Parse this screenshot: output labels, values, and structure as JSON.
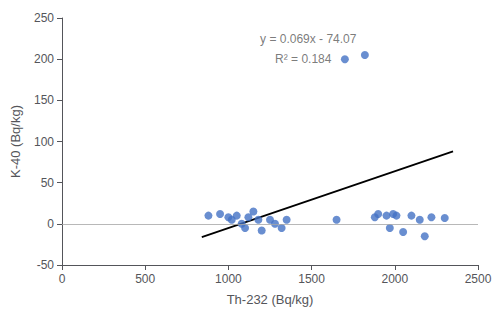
{
  "chart_data": {
    "type": "scatter",
    "xlabel": "Th-232 (Bq/kg)",
    "ylabel": "K-40 (Bq/kg)",
    "series": [
      {
        "type": "scatter",
        "color": "#4472c4",
        "x": [
          880,
          950,
          1000,
          1020,
          1050,
          1080,
          1100,
          1120,
          1150,
          1180,
          1200,
          1250,
          1280,
          1320,
          1350,
          1650,
          1700,
          1820,
          1880,
          1900,
          1950,
          1970,
          1990,
          2010,
          2050,
          2100,
          2150,
          2180,
          2220,
          2300
        ],
        "values": [
          10,
          12,
          8,
          5,
          10,
          0,
          -5,
          8,
          15,
          5,
          -8,
          5,
          0,
          -5,
          5,
          5,
          200,
          205,
          8,
          12,
          10,
          -5,
          12,
          10,
          -10,
          10,
          5,
          -15,
          8,
          7
        ]
      },
      {
        "type": "line",
        "color": "#000000",
        "x": [
          840,
          2350
        ],
        "values": [
          -16.11,
          88.08
        ]
      }
    ],
    "annotations": [
      {
        "text": "y = 0.069x - 74.07",
        "x": 1480,
        "y": 225
      },
      {
        "text": "R² = 0.184",
        "x": 1450,
        "y": 200
      }
    ],
    "hline": 0,
    "xlim": [
      0,
      2500
    ],
    "ylim": [
      -50,
      250
    ],
    "xticks": [
      0,
      500,
      1000,
      1500,
      2000,
      2500
    ],
    "yticks": [
      -50,
      0,
      50,
      100,
      150,
      200,
      250
    ],
    "grid": false
  }
}
